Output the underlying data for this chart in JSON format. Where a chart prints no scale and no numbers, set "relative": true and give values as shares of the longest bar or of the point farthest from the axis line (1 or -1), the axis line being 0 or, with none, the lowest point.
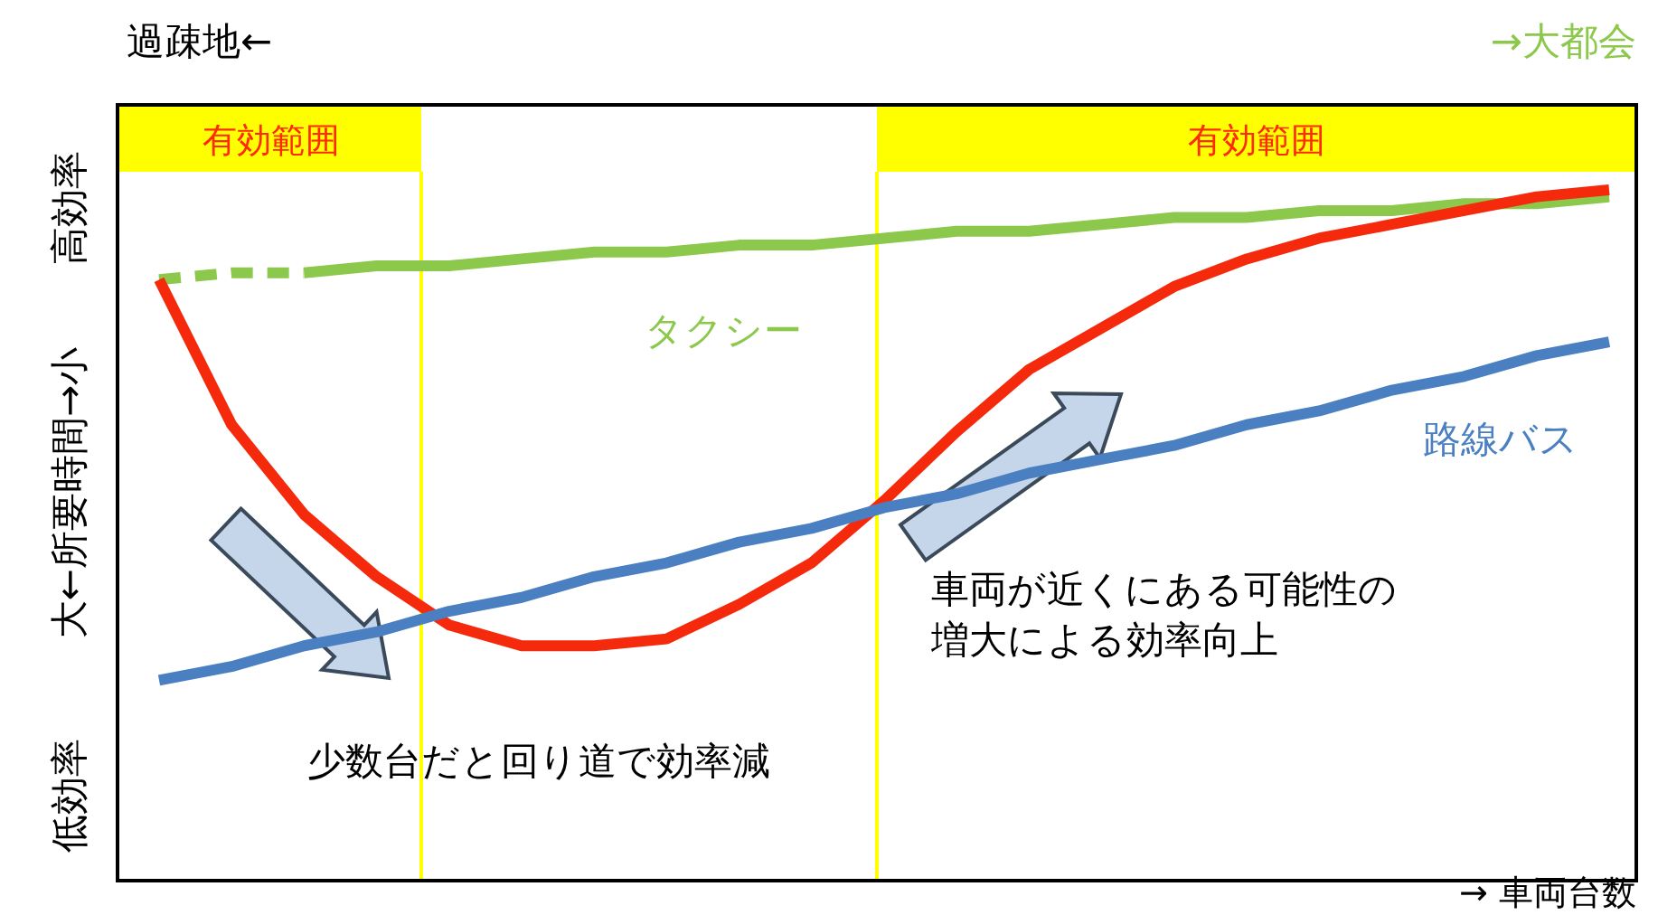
{
  "chart_data": {
    "type": "line",
    "relative": true,
    "xlabel": "→ 車両台数",
    "ylabel": "大←所要時間→小",
    "categories": [
      null,
      null,
      null,
      null,
      null,
      null,
      null,
      null,
      null,
      null,
      null,
      null,
      null,
      null,
      null,
      null,
      null,
      null,
      null,
      null,
      null
    ],
    "series": [
      {
        "name": "タクシー",
        "color": "#8cc84b",
        "line_style": "solid",
        "values": [
          null,
          null,
          0.88,
          0.89,
          0.89,
          0.9,
          0.91,
          0.91,
          0.92,
          0.92,
          0.93,
          0.94,
          0.94,
          0.95,
          0.96,
          0.96,
          0.97,
          0.97,
          0.98,
          0.98,
          0.99
        ]
      },
      {
        "color": "#8cc84b",
        "line_style": "dashed",
        "values": [
          0.87,
          0.88,
          0.88,
          null,
          null,
          null,
          null,
          null,
          null,
          null,
          null,
          null,
          null,
          null,
          null,
          null,
          null,
          null,
          null,
          null,
          null
        ]
      },
      {
        "color": "#f52a0c",
        "line_style": "solid",
        "values": [
          0.87,
          0.66,
          0.53,
          0.44,
          0.37,
          0.34,
          0.34,
          0.35,
          0.4,
          0.46,
          0.55,
          0.65,
          0.74,
          0.8,
          0.86,
          0.9,
          0.93,
          0.95,
          0.97,
          0.99,
          1
        ]
      },
      {
        "name": "路線バス",
        "color": "#4a7fc1",
        "line_style": "solid",
        "values": [
          0.29,
          0.31,
          0.34,
          0.36,
          0.39,
          0.41,
          0.44,
          0.46,
          0.49,
          0.51,
          0.54,
          0.56,
          0.59,
          0.61,
          0.63,
          0.66,
          0.68,
          0.71,
          0.73,
          0.76,
          0.78
        ]
      }
    ],
    "annotations": [
      "過疎地←",
      "→大都会",
      "高効率",
      "低効率",
      "車両が近くにある可能性の増大による効率向上",
      "少数台だと回り道で効率減",
      "有効範囲",
      "有効範囲"
    ]
  }
}
